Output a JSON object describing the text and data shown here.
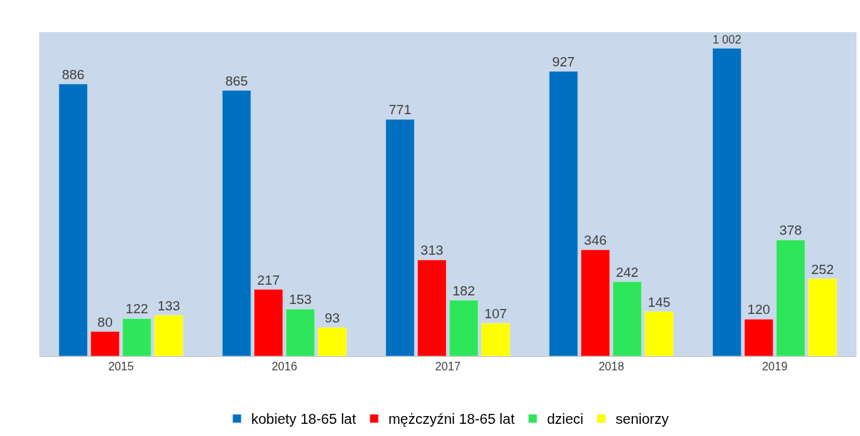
{
  "chart_data": {
    "type": "bar",
    "categories": [
      "2015",
      "2016",
      "2017",
      "2018",
      "2019"
    ],
    "series": [
      {
        "name": "kobiety 18-65 lat",
        "color": "#0070c0",
        "values": [
          886,
          865,
          771,
          927,
          1002
        ],
        "value_labels": [
          "886",
          "865",
          "771",
          "927",
          "1 002"
        ]
      },
      {
        "name": "mężczyźni 18-65 lat",
        "color": "#ff0000",
        "values": [
          80,
          217,
          313,
          346,
          120
        ],
        "value_labels": [
          "80",
          "217",
          "313",
          "346",
          "120"
        ]
      },
      {
        "name": "dzieci",
        "color": "#2ee65a",
        "values": [
          122,
          153,
          182,
          242,
          378
        ],
        "value_labels": [
          "122",
          "153",
          "182",
          "242",
          "378"
        ]
      },
      {
        "name": "seniorzy",
        "color": "#ffff00",
        "values": [
          133,
          93,
          107,
          145,
          252
        ],
        "value_labels": [
          "133",
          "93",
          "107",
          "145",
          "252"
        ]
      }
    ],
    "legend": "bottom",
    "grid": false
  }
}
